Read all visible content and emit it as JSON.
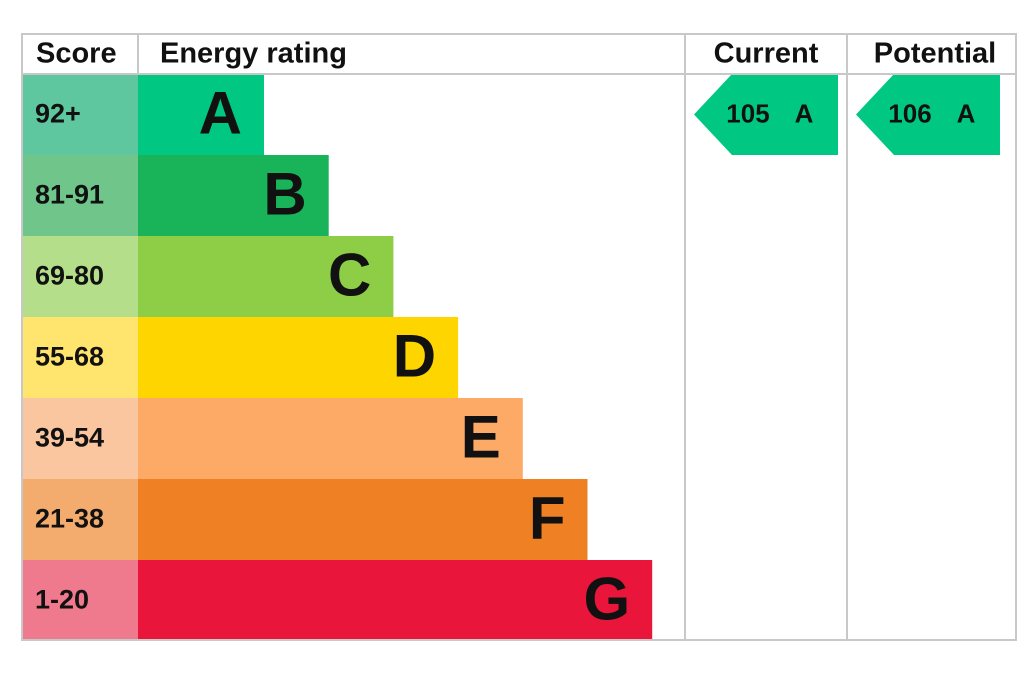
{
  "header": {
    "score": "Score",
    "rating": "Energy rating",
    "current": "Current",
    "potential": "Potential"
  },
  "rows": [
    {
      "score": "92+",
      "band": "A"
    },
    {
      "score": "81-91",
      "band": "B"
    },
    {
      "score": "69-80",
      "band": "C"
    },
    {
      "score": "55-68",
      "band": "D"
    },
    {
      "score": "39-54",
      "band": "E"
    },
    {
      "score": "21-38",
      "band": "F"
    },
    {
      "score": "1-20",
      "band": "G"
    }
  ],
  "current": {
    "score": "105",
    "band": "A"
  },
  "potential": {
    "score": "106",
    "band": "A"
  }
}
